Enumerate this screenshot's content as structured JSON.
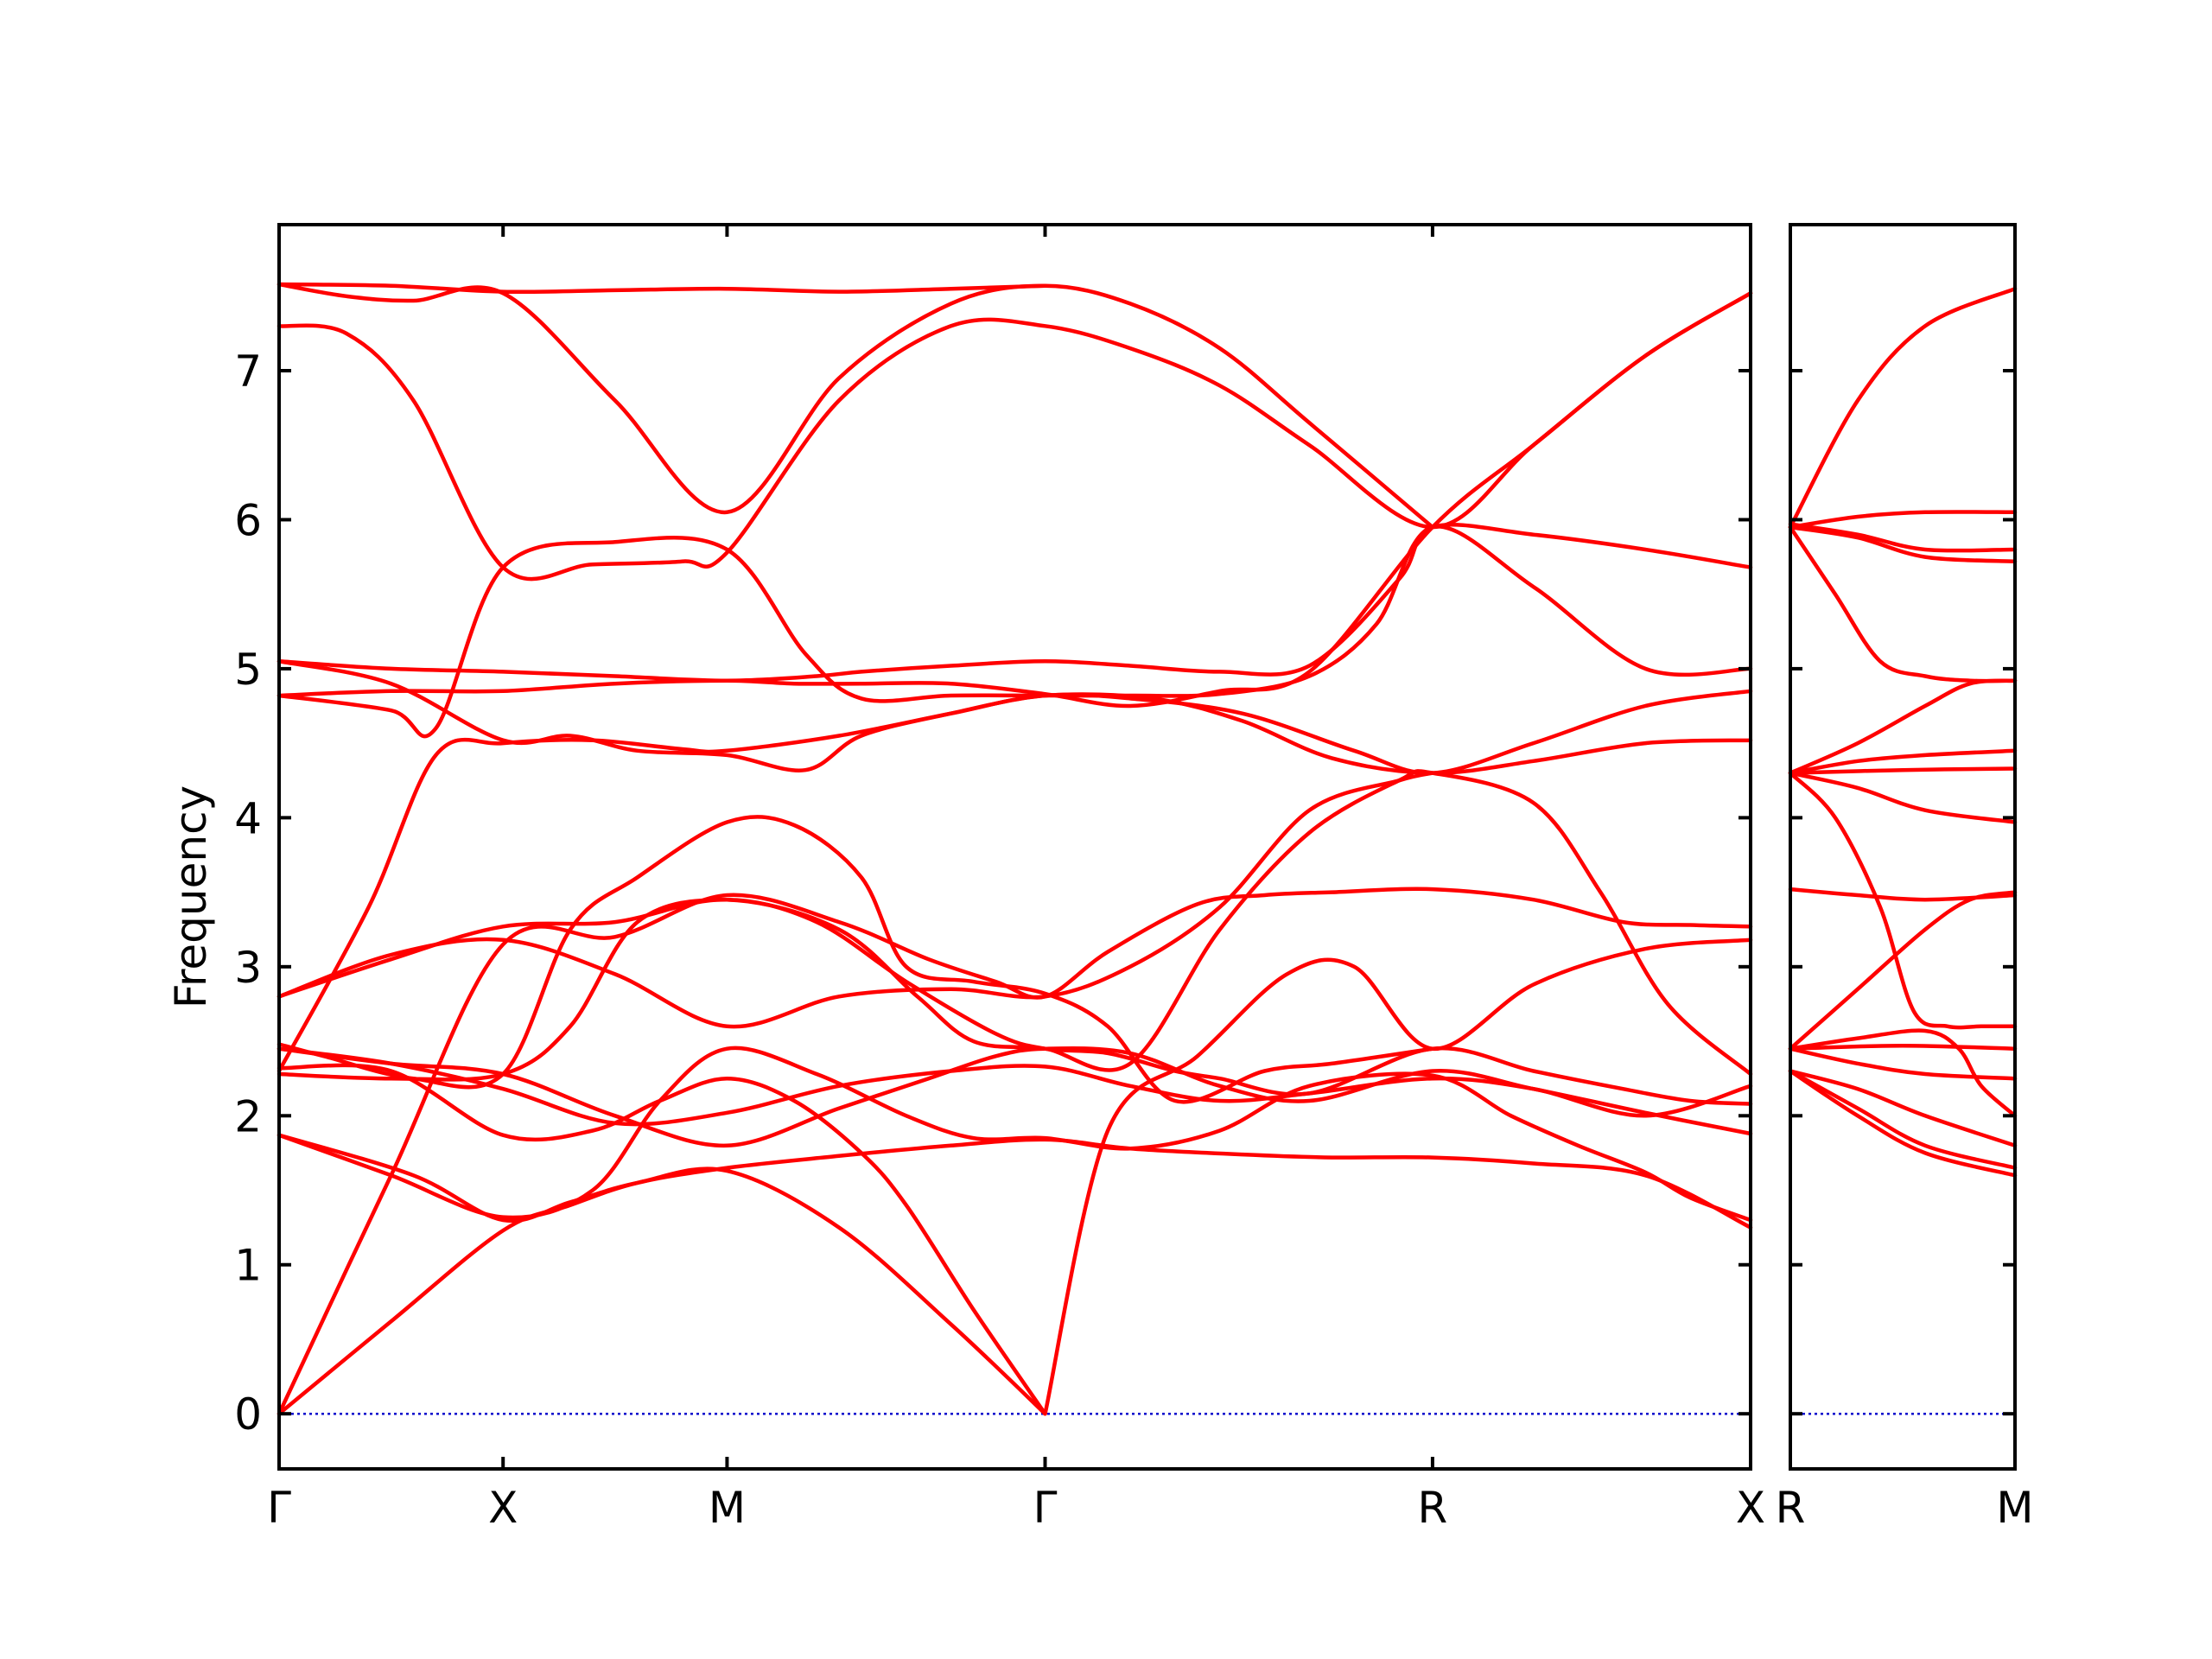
{
  "chart_data": {
    "type": "line",
    "title": "",
    "ylabel": "Frequency",
    "ylim": [
      -0.37,
      7.98
    ],
    "yticks": [
      0,
      1,
      2,
      3,
      4,
      5,
      6,
      7
    ],
    "grid": false,
    "legend": "none",
    "colors": {
      "bands": "#ff0000",
      "zero_line": "#0000cc"
    },
    "panels": [
      {
        "name": "main",
        "xlim": [
          0,
          6.57
        ],
        "path_points": [
          {
            "label": "Γ",
            "x": 0
          },
          {
            "label": "X",
            "x": 1
          },
          {
            "label": "M",
            "x": 2
          },
          {
            "label": "Γ",
            "x": 3.42
          },
          {
            "label": "R",
            "x": 5.15
          },
          {
            "label": "X",
            "x": 6.57
          }
        ],
        "bands": [
          {
            "x": [
              0,
              0.5,
              1,
              1.3,
              1.6,
              2,
              2.5,
              3,
              3.42,
              3.8,
              4.3,
              4.7,
              5.15,
              5.6,
              6.1,
              6.57
            ],
            "y": [
              0,
              0.62,
              1.23,
              1.4,
              1.55,
              1.65,
              1.73,
              1.8,
              1.84,
              1.78,
              1.74,
              1.72,
              1.72,
              1.68,
              1.6,
              1.25
            ]
          },
          {
            "x": [
              0,
              0.5,
              1,
              1.5,
              2,
              2.5,
              2.9,
              3.2,
              3.42,
              3.7,
              4.1,
              4.4,
              4.7,
              5.15,
              5.6,
              6,
              6.3,
              6.57
            ],
            "y": [
              0,
              1.6,
              3.15,
              3.2,
              3.48,
              3.3,
              3.05,
              2.9,
              2.8,
              3.1,
              3.42,
              3.48,
              3.5,
              3.52,
              3.45,
              3.3,
              3.28,
              3.27
            ]
          },
          {
            "x": [
              0,
              0.4,
              0.7,
              1,
              1.4,
              1.8,
              2,
              2.5,
              3,
              3.42,
              3.9,
              4.3,
              4.7,
              5.15,
              5.6,
              6.1,
              6.57
            ],
            "y": [
              2.3,
              3.4,
              4.42,
              4.5,
              4.52,
              4.46,
              4.45,
              4.55,
              4.7,
              4.82,
              4.8,
              4.65,
              4.4,
              4.3,
              4.38,
              4.5,
              4.52
            ]
          },
          {
            "x": [
              0,
              0.5,
              1,
              1.3,
              1.6,
              2,
              2.4,
              2.8,
              3.2,
              3.42,
              3.7,
              4,
              4.2,
              4.6,
              5.15,
              5.6,
              6,
              6.3,
              6.57
            ],
            "y": [
              2.28,
              2.25,
              2.28,
              2.6,
              3.3,
              3.45,
              3.3,
              2.9,
              2.55,
              2.45,
              2.42,
              2.3,
              2.25,
              2.15,
              2.45,
              2.3,
              2.18,
              2.1,
              2.08
            ]
          },
          {
            "x": [
              0,
              0.5,
              1,
              1.5,
              2,
              2.5,
              2.9,
              3.2,
              3.42,
              3.8,
              4.2,
              4.6,
              5.15,
              5.6,
              6.1,
              6.57
            ],
            "y": [
              2.45,
              2.35,
              2.28,
              2.0,
              1.8,
              2.05,
              2.25,
              2.4,
              2.45,
              2.42,
              2.2,
              2.1,
              2.3,
              2.18,
              2.02,
              1.88
            ]
          },
          {
            "x": [
              0,
              0.5,
              1,
              1.5,
              2,
              2.5,
              3,
              3.42,
              3.8,
              4.2,
              4.6,
              5.15,
              5.6,
              6.1,
              6.57
            ],
            "y": [
              2.45,
              2.35,
              2.18,
              1.95,
              2.02,
              2.2,
              2.3,
              2.33,
              2.2,
              2.1,
              2.15,
              2.25,
              2.18,
              2.0,
              2.2
            ]
          },
          {
            "x": [
              0,
              0.5,
              1,
              1.4,
              1.7,
              2,
              2.4,
              2.8,
              3.1,
              3.42,
              3.8,
              4.2,
              4.6,
              5.15,
              5.5,
              5.8,
              6.1,
              6.3,
              6.57
            ],
            "y": [
              1.87,
              1.6,
              1.32,
              1.5,
              2.1,
              2.45,
              2.28,
              2.0,
              1.85,
              1.85,
              1.78,
              1.9,
              2.2,
              2.27,
              2.0,
              1.8,
              1.62,
              1.45,
              1.3
            ]
          },
          {
            "x": [
              0,
              0.5,
              1,
              1.4,
              1.7,
              2,
              2.3,
              2.6,
              2.8,
              3.1,
              3.42
            ],
            "y": [
              2.32,
              2.3,
              1.87,
              1.9,
              2.1,
              2.25,
              2.1,
              1.75,
              1.4,
              0.7,
              0
            ]
          },
          {
            "x": [
              0,
              0.6,
              1,
              1.3,
              1.6,
              2,
              2.5,
              3,
              3.42
            ],
            "y": [
              1.87,
              1.6,
              1.3,
              1.42,
              1.55,
              1.63,
              1.25,
              0.6,
              0
            ]
          },
          {
            "x": [
              3.42,
              3.7,
              4.1,
              4.5,
              4.8,
              5.15,
              5.6,
              6.1,
              6.57
            ],
            "y": [
              0,
              1.9,
              2.4,
              2.95,
              3.0,
              2.45,
              2.88,
              3.12,
              3.18
            ]
          },
          {
            "x": [
              0,
              0.5,
              1,
              1.5,
              2,
              2.5,
              2.85,
              3.1,
              3.42,
              3.8,
              4.2,
              4.6,
              5,
              5.15,
              5.6,
              5.9,
              6.2,
              6.57
            ],
            "y": [
              2.8,
              3.05,
              3.27,
              3.3,
              3.45,
              3.25,
              2.8,
              2.5,
              2.45,
              2.35,
              3.25,
              3.9,
              4.25,
              4.3,
              4.1,
              3.5,
              2.75,
              2.28
            ]
          },
          {
            "x": [
              0,
              0.5,
              1,
              1.5,
              2,
              2.5,
              3,
              3.42,
              3.8,
              4.2,
              4.6,
              5,
              5.15
            ],
            "y": [
              2.8,
              3.08,
              3.18,
              2.95,
              2.6,
              2.8,
              2.85,
              2.8,
              3.0,
              3.4,
              4.05,
              4.25,
              4.3
            ]
          },
          {
            "x": [
              0,
              0.2,
              0.6,
              1,
              1.3,
              1.6,
              2,
              2.3,
              2.6,
              2.8,
              3.1,
              3.42,
              3.7,
              4,
              4.4,
              4.7,
              5.15
            ],
            "y": [
              2.48,
              2.4,
              2.25,
              2.28,
              3.25,
              3.6,
              3.97,
              3.95,
              3.6,
              3.0,
              2.9,
              2.82,
              2.6,
              2.1,
              2.3,
              2.35,
              2.45
            ]
          },
          {
            "x": [
              0,
              0.5,
              0.7,
              1,
              1.5,
              2,
              2.35,
              2.6,
              3,
              3.42,
              3.8,
              4.2,
              4.6,
              4.9,
              5.15,
              5.6,
              6.1,
              6.57
            ],
            "y": [
              4.82,
              4.72,
              4.6,
              5.68,
              5.85,
              5.8,
              5.1,
              4.8,
              4.82,
              4.82,
              4.82,
              4.83,
              4.95,
              5.3,
              5.95,
              5.55,
              5.0,
              5.0
            ]
          },
          {
            "x": [
              0,
              0.5,
              1,
              1.5,
              2,
              2.4,
              2.6,
              3,
              3.42,
              3.8,
              4.2,
              4.6,
              5,
              5.15,
              5.6,
              6.1,
              6.57
            ],
            "y": [
              5.05,
              5.0,
              4.98,
              4.95,
              4.92,
              4.95,
              4.98,
              5.02,
              5.05,
              5.02,
              4.98,
              5.02,
              5.6,
              5.95,
              5.9,
              5.8,
              5.68
            ]
          },
          {
            "x": [
              0,
              0.5,
              1,
              1.3,
              1.6,
              2,
              2.35,
              2.6,
              3,
              3.42,
              3.8,
              4.3,
              4.8,
              5.15,
              5.6,
              6.1,
              6.57
            ],
            "y": [
              5.05,
              4.9,
              4.52,
              4.55,
              4.45,
              4.42,
              4.32,
              4.55,
              4.7,
              4.82,
              4.8,
              4.7,
              4.45,
              4.3,
              4.5,
              4.75,
              4.85
            ]
          },
          {
            "x": [
              0,
              0.5,
              1,
              1.5,
              2,
              2.3,
              2.6,
              3,
              3.42,
              3.8,
              4.2,
              4.6,
              5.15,
              5.6,
              6.1,
              6.57
            ],
            "y": [
              4.82,
              4.85,
              4.85,
              4.9,
              4.92,
              4.9,
              4.9,
              4.9,
              4.83,
              4.75,
              4.85,
              4.98,
              5.95,
              6.5,
              7.1,
              7.52
            ]
          },
          {
            "x": [
              0,
              0.3,
              0.6,
              1,
              1.4,
              1.8,
              2,
              2.5,
              3,
              3.42,
              3.8,
              4.2,
              4.6,
              5.15,
              5.6,
              6.1,
              6.57
            ],
            "y": [
              7.3,
              7.25,
              6.8,
              5.68,
              5.7,
              5.72,
              5.78,
              6.8,
              7.3,
              7.3,
              7.15,
              6.9,
              6.5,
              5.95,
              6.5,
              7.1,
              7.52
            ]
          },
          {
            "x": [
              0,
              0.3,
              0.6,
              1,
              1.5,
              2,
              2.5,
              3,
              3.42,
              3.8,
              4.2,
              4.6,
              5.15
            ],
            "y": [
              7.58,
              7.5,
              7.47,
              7.52,
              6.8,
              6.05,
              6.95,
              7.45,
              7.57,
              7.45,
              7.15,
              6.65,
              5.95
            ]
          },
          {
            "x": [
              0,
              0.5,
              1,
              1.5,
              2,
              2.5,
              3,
              3.42
            ],
            "y": [
              7.58,
              7.57,
              7.53,
              7.54,
              7.55,
              7.53,
              7.55,
              7.57
            ]
          }
        ]
      },
      {
        "name": "branch",
        "xlim": [
          0,
          1
        ],
        "path_points": [
          {
            "label": "R",
            "x": 0
          },
          {
            "label": "M",
            "x": 1
          }
        ],
        "bands": [
          {
            "x": [
              0,
              0.3,
              0.6,
              1
            ],
            "y": [
              5.95,
              6.8,
              7.3,
              7.55
            ]
          },
          {
            "x": [
              0,
              0.3,
              0.6,
              1
            ],
            "y": [
              5.95,
              6.02,
              6.05,
              6.05
            ]
          },
          {
            "x": [
              0,
              0.3,
              0.6,
              1
            ],
            "y": [
              5.97,
              5.9,
              5.8,
              5.8
            ]
          },
          {
            "x": [
              0,
              0.3,
              0.6,
              1
            ],
            "y": [
              5.95,
              5.88,
              5.75,
              5.72
            ]
          },
          {
            "x": [
              0,
              0.2,
              0.4,
              0.6,
              0.8,
              1
            ],
            "y": [
              5.95,
              5.5,
              5.05,
              4.95,
              4.92,
              4.92
            ]
          },
          {
            "x": [
              0,
              0.3,
              0.6,
              0.8,
              1
            ],
            "y": [
              4.3,
              4.5,
              4.75,
              4.9,
              4.92
            ]
          },
          {
            "x": [
              0,
              0.3,
              0.6,
              1
            ],
            "y": [
              4.3,
              4.38,
              4.42,
              4.45
            ]
          },
          {
            "x": [
              0,
              0.5,
              1
            ],
            "y": [
              4.3,
              4.32,
              4.33
            ]
          },
          {
            "x": [
              0,
              0.3,
              0.6,
              1
            ],
            "y": [
              4.3,
              4.2,
              4.05,
              3.97
            ]
          },
          {
            "x": [
              0,
              0.2,
              0.4,
              0.55,
              0.7,
              0.85,
              1
            ],
            "y": [
              4.3,
              4.0,
              3.4,
              2.7,
              2.6,
              2.6,
              2.6
            ]
          },
          {
            "x": [
              0,
              0.3,
              0.6,
              1
            ],
            "y": [
              3.52,
              3.48,
              3.45,
              3.48
            ]
          },
          {
            "x": [
              0,
              0.3,
              0.6,
              0.8,
              1
            ],
            "y": [
              2.45,
              2.85,
              3.25,
              3.45,
              3.5
            ]
          },
          {
            "x": [
              0,
              0.3,
              0.6,
              0.75,
              0.85,
              1
            ],
            "y": [
              2.45,
              2.52,
              2.57,
              2.45,
              2.2,
              2.0
            ]
          },
          {
            "x": [
              0,
              0.5,
              1
            ],
            "y": [
              2.45,
              2.47,
              2.45
            ]
          },
          {
            "x": [
              0,
              0.3,
              0.6,
              1
            ],
            "y": [
              2.45,
              2.35,
              2.28,
              2.25
            ]
          },
          {
            "x": [
              0,
              0.3,
              0.6,
              1
            ],
            "y": [
              2.3,
              2.18,
              2.0,
              1.8
            ]
          },
          {
            "x": [
              0,
              0.3,
              0.6,
              1
            ],
            "y": [
              2.3,
              2.05,
              1.8,
              1.65
            ]
          },
          {
            "x": [
              0,
              0.3,
              0.6,
              1
            ],
            "y": [
              2.3,
              2.0,
              1.75,
              1.6
            ]
          }
        ]
      }
    ]
  }
}
